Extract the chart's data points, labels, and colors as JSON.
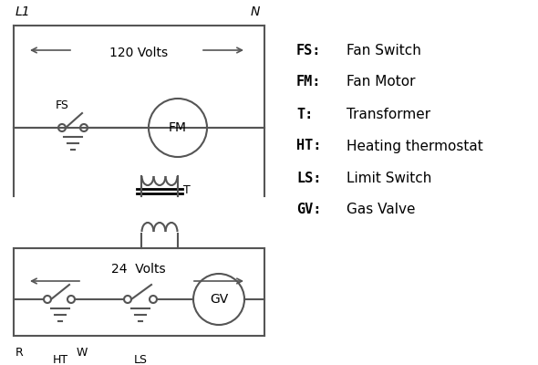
{
  "background_color": "#ffffff",
  "line_color": "#555555",
  "text_color": "#000000",
  "legend_items": [
    [
      "FS:",
      "Fan Switch"
    ],
    [
      "FM:",
      "Fan Motor"
    ],
    [
      "T:",
      "Transformer"
    ],
    [
      "HT:",
      "Heating thermostat"
    ],
    [
      "LS:",
      "Limit Switch"
    ],
    [
      "GV:",
      "Gas Valve"
    ]
  ]
}
